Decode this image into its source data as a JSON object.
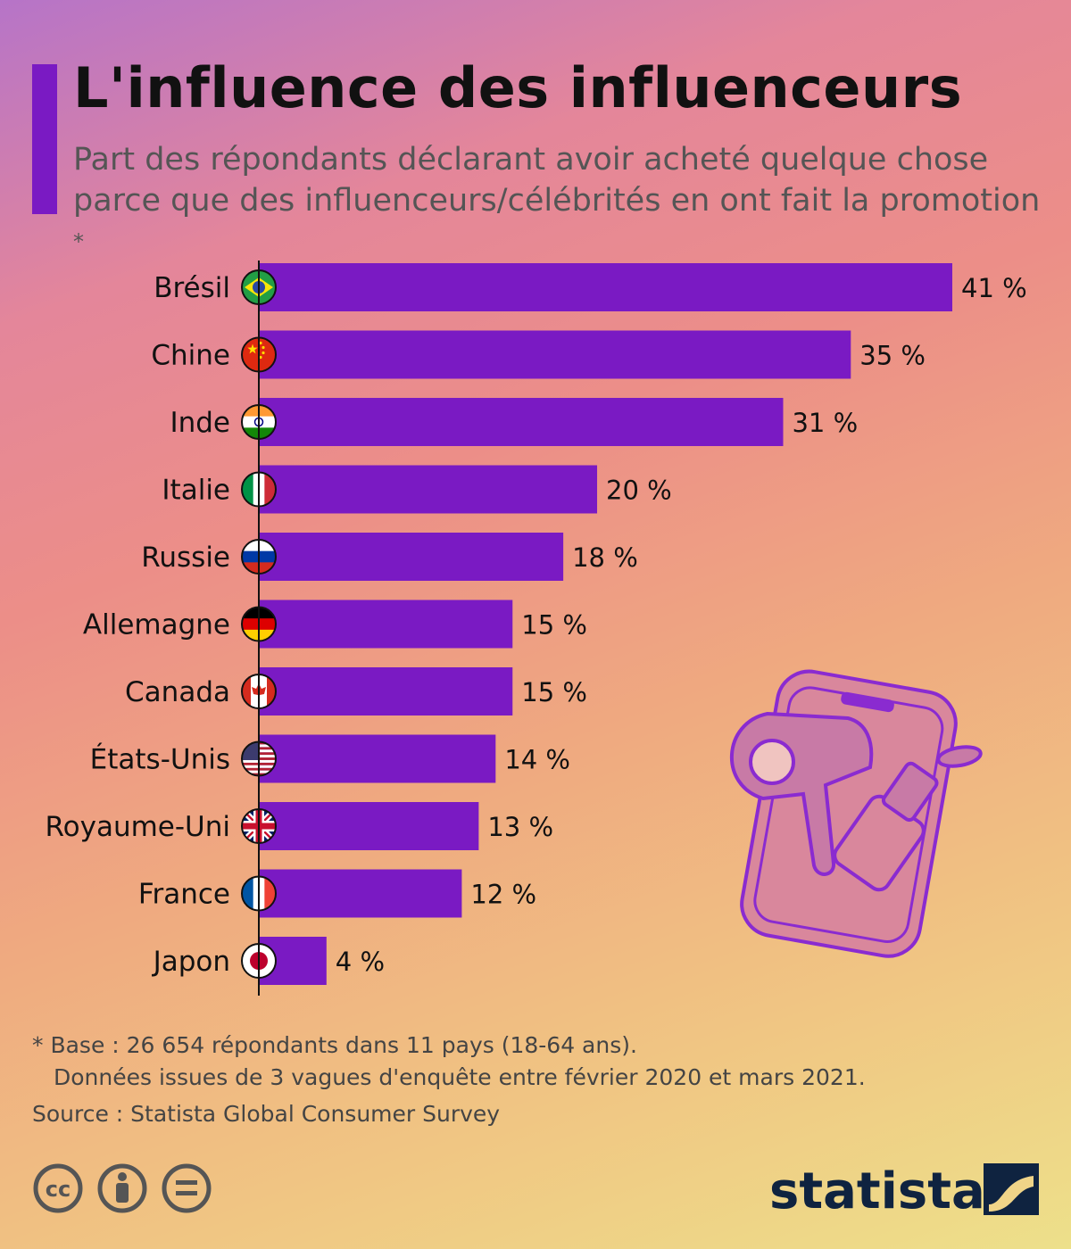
{
  "title": "L'influence des influenceurs",
  "subtitle": "Part des répondants déclarant avoir acheté quelque chose parce que des influenceurs/célébrités en ont fait la promotion",
  "subtitle_marker": "*",
  "chart_data": {
    "type": "bar",
    "orientation": "horizontal",
    "categories": [
      "Brésil",
      "Chine",
      "Inde",
      "Italie",
      "Russie",
      "Allemagne",
      "Canada",
      "États-Unis",
      "Royaume-Uni",
      "France",
      "Japon"
    ],
    "values": [
      41,
      35,
      31,
      20,
      18,
      15,
      15,
      14,
      13,
      12,
      4
    ],
    "value_labels": [
      "41 %",
      "35 %",
      "31 %",
      "20 %",
      "18 %",
      "15 %",
      "15 %",
      "14 %",
      "13 %",
      "12 %",
      "4 %"
    ],
    "xlim": [
      0,
      41
    ],
    "bar_color": "#7a1ac3",
    "grid": false,
    "flags": [
      "brazil-flag-icon",
      "china-flag-icon",
      "india-flag-icon",
      "italy-flag-icon",
      "russia-flag-icon",
      "germany-flag-icon",
      "canada-flag-icon",
      "usa-flag-icon",
      "uk-flag-icon",
      "france-flag-icon",
      "japan-flag-icon"
    ]
  },
  "footnote": {
    "line1": "* Base : 26 654 répondants dans 11 pays (18-64 ans).",
    "line2": "Données issues de 3 vagues d'enquête entre février 2020 et mars 2021."
  },
  "source": "Source : Statista Global Consumer Survey",
  "brand": "statista",
  "license_icons": [
    "cc-icon",
    "attribution-icon",
    "no-derivatives-icon"
  ],
  "illustration_icons": [
    "smartphone-icon",
    "hair-dryer-icon",
    "lipstick-icon"
  ]
}
